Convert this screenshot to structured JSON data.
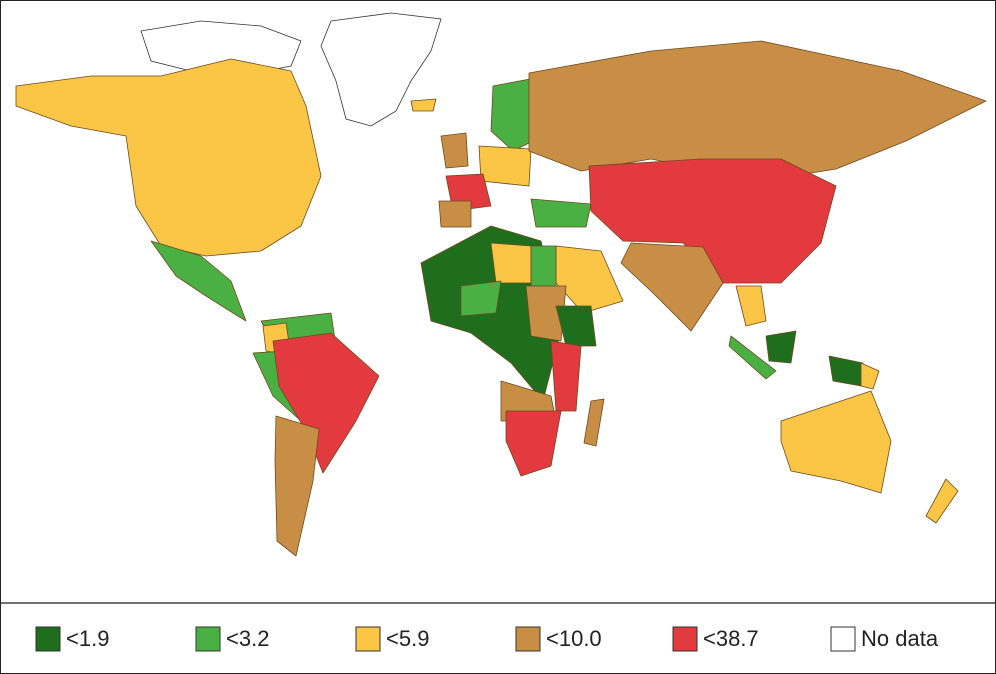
{
  "legend": {
    "items": [
      {
        "label": "<1.9",
        "color": "#1e6e1e"
      },
      {
        "label": "<3.2",
        "color": "#4bb043"
      },
      {
        "label": "<5.9",
        "color": "#fbc646"
      },
      {
        "label": "<10.0",
        "color": "#c98e45"
      },
      {
        "label": "<38.7",
        "color": "#e23a3f"
      },
      {
        "label": "No data",
        "color": "#ffffff"
      }
    ]
  }
}
